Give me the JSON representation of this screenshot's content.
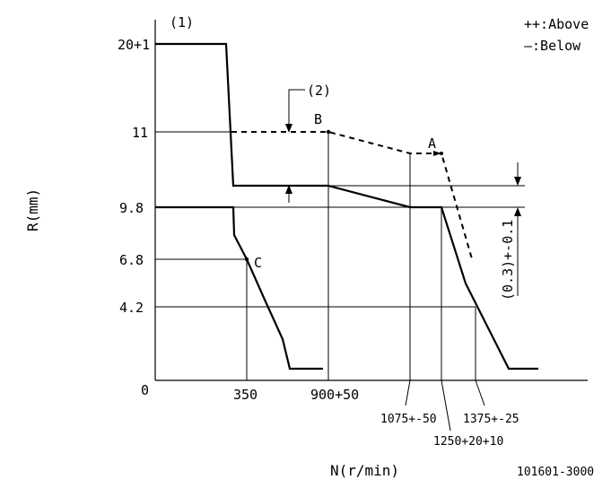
{
  "legend": {
    "above": "++:Above",
    "below": "—:Below"
  },
  "markers": {
    "one": "(1)",
    "two": "(2)",
    "A": "A",
    "B": "B",
    "C": "C",
    "tolerance": "(0.3)+-0.1"
  },
  "axes": {
    "ylabel": "R(mm)",
    "xlabel": "N(r/min)",
    "y_ticks": [
      "20+1",
      "11",
      "9.8",
      "6.8",
      "4.2",
      "0"
    ],
    "x_ticks": [
      "350",
      "900+50",
      "1075+-50",
      "1250+20+10",
      "1375+-25"
    ]
  },
  "figure_code": "101601-3000",
  "colors": {
    "ink": "#000000",
    "background": "#ffffff"
  }
}
